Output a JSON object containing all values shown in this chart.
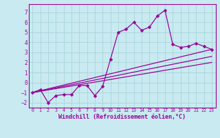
{
  "background_color": "#c8eaf0",
  "grid_color": "#aad4dc",
  "line_color": "#990099",
  "marker_color": "#990099",
  "xlabel": "Windchill (Refroidissement éolien,°C)",
  "xlabel_fontsize": 6.0,
  "xlim": [
    -0.5,
    23.5
  ],
  "ylim": [
    -2.5,
    7.8
  ],
  "xticks": [
    0,
    1,
    2,
    3,
    4,
    5,
    6,
    7,
    8,
    9,
    10,
    11,
    12,
    13,
    14,
    15,
    16,
    17,
    18,
    19,
    20,
    21,
    22,
    23
  ],
  "yticks": [
    -2,
    -1,
    0,
    1,
    2,
    3,
    4,
    5,
    6,
    7
  ],
  "main_series_x": [
    0,
    1,
    2,
    3,
    4,
    5,
    6,
    7,
    8,
    9,
    10,
    11,
    12,
    13,
    14,
    15,
    16,
    17,
    18,
    19,
    20,
    21,
    22,
    23
  ],
  "main_series_y": [
    -1.0,
    -0.7,
    -2.0,
    -1.3,
    -1.2,
    -1.2,
    -0.3,
    -0.3,
    -1.3,
    -0.4,
    2.3,
    5.0,
    5.3,
    6.0,
    5.2,
    5.5,
    6.6,
    7.2,
    3.8,
    3.5,
    3.6,
    3.9,
    3.6,
    3.3
  ],
  "line1_x": [
    0,
    23
  ],
  "line1_y": [
    -1.0,
    3.3
  ],
  "line2_x": [
    0,
    23
  ],
  "line2_y": [
    -1.0,
    2.6
  ],
  "line3_x": [
    0,
    23
  ],
  "line3_y": [
    -1.0,
    2.0
  ],
  "tick_fontsize": 5.5,
  "xtick_fontsize": 4.8,
  "marker_size": 2.5,
  "line_width": 0.9
}
